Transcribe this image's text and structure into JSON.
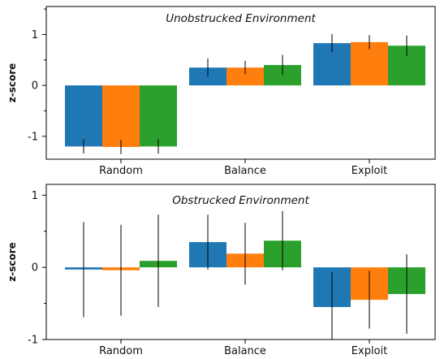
{
  "chart_data": [
    {
      "type": "bar",
      "title": "Unobstrucked Environment",
      "ylabel": "z-score",
      "xlabel": "",
      "categories": [
        "Random",
        "Balance",
        "Exploit"
      ],
      "ylim": [
        -1.45,
        1.55
      ],
      "yticks": [
        1,
        0,
        -1
      ],
      "ytick_labels": [
        "1",
        "0",
        "-1"
      ],
      "grid": false,
      "legend": "none",
      "colors": [
        "#1f77b4",
        "#ff7f0e",
        "#2ca02c"
      ],
      "series": [
        {
          "values": [
            -1.2,
            0.35,
            0.83
          ],
          "errors": [
            0.14,
            0.18,
            0.18
          ]
        },
        {
          "values": [
            -1.21,
            0.35,
            0.85
          ],
          "errors": [
            0.14,
            0.13,
            0.14
          ]
        },
        {
          "values": [
            -1.2,
            0.4,
            0.78
          ],
          "errors": [
            0.14,
            0.2,
            0.2
          ]
        }
      ]
    },
    {
      "type": "bar",
      "title": "Obstrucked Environment",
      "ylabel": "z-score",
      "xlabel": "",
      "categories": [
        "Random",
        "Balance",
        "Exploit"
      ],
      "ylim": [
        -1.0,
        1.15
      ],
      "yticks": [
        1,
        0,
        -1
      ],
      "ytick_labels": [
        "1",
        "0",
        "-1"
      ],
      "grid": false,
      "legend": "none",
      "colors": [
        "#1f77b4",
        "#ff7f0e",
        "#2ca02c"
      ],
      "series": [
        {
          "values": [
            -0.03,
            0.35,
            -0.55
          ],
          "errors": [
            0.66,
            0.38,
            0.48
          ]
        },
        {
          "values": [
            -0.04,
            0.19,
            -0.45
          ],
          "errors": [
            0.63,
            0.43,
            0.4
          ]
        },
        {
          "values": [
            0.09,
            0.37,
            -0.37
          ],
          "errors": [
            0.64,
            0.41,
            0.55
          ]
        }
      ]
    }
  ]
}
